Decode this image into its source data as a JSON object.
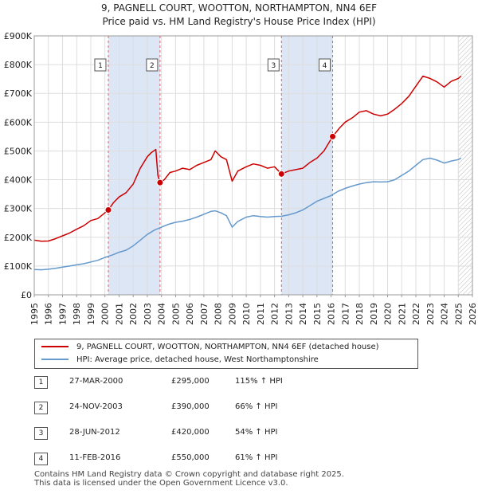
{
  "title": {
    "line1": "9, PAGNELL COURT, WOOTTON, NORTHAMPTON, NN4 6EF",
    "line2": "Price paid vs. HM Land Registry's House Price Index (HPI)"
  },
  "colors": {
    "price_line": "#cc0000",
    "hpi_line": "#6699cc",
    "shade": "#dde6f5",
    "grid": "#dddddd",
    "marker_vline": "#e06060"
  },
  "legend": {
    "items": [
      {
        "label": "9, PAGNELL COURT, WOOTTON, NORTHAMPTON, NN4 6EF (detached house)",
        "color": "#cc0000"
      },
      {
        "label": "HPI: Average price, detached house, West Northamptonshire",
        "color": "#6699cc"
      }
    ]
  },
  "sales": [
    {
      "num": "1",
      "date": "27-MAR-2000",
      "price": "£295,000",
      "pct": "115% ↑ HPI"
    },
    {
      "num": "2",
      "date": "24-NOV-2003",
      "price": "£390,000",
      "pct": "66% ↑ HPI"
    },
    {
      "num": "3",
      "date": "28-JUN-2012",
      "price": "£420,000",
      "pct": "54% ↑ HPI"
    },
    {
      "num": "4",
      "date": "11-FEB-2016",
      "price": "£550,000",
      "pct": "61% ↑ HPI"
    }
  ],
  "footer": {
    "line1": "Contains HM Land Registry data © Crown copyright and database right 2025.",
    "line2": "This data is licensed under the Open Government Licence v3.0."
  },
  "chart_data": {
    "type": "line",
    "xlim": [
      1995,
      2026
    ],
    "ylim": [
      0,
      900000
    ],
    "x_ticks": [
      "1995",
      "1996",
      "1997",
      "1998",
      "1999",
      "2000",
      "2001",
      "2002",
      "2003",
      "2004",
      "2005",
      "2006",
      "2007",
      "2008",
      "2009",
      "2010",
      "2011",
      "2012",
      "2013",
      "2014",
      "2015",
      "2016",
      "2017",
      "2018",
      "2019",
      "2020",
      "2021",
      "2022",
      "2023",
      "2024",
      "2025",
      "2026"
    ],
    "y_ticks": [
      {
        "value": 0,
        "label": "£0"
      },
      {
        "value": 100000,
        "label": "£100K"
      },
      {
        "value": 200000,
        "label": "£200K"
      },
      {
        "value": 300000,
        "label": "£300K"
      },
      {
        "value": 400000,
        "label": "£400K"
      },
      {
        "value": 500000,
        "label": "£500K"
      },
      {
        "value": 600000,
        "label": "£600K"
      },
      {
        "value": 700000,
        "label": "£700K"
      },
      {
        "value": 800000,
        "label": "£800K"
      },
      {
        "value": 900000,
        "label": "£900K"
      }
    ],
    "grid": true,
    "shaded_ranges": [
      [
        2000.24,
        2003.9
      ],
      [
        2012.49,
        2016.11
      ]
    ],
    "hatched_from": 2025.0,
    "markers": [
      {
        "label": "1",
        "x": 2000.24,
        "y": 295000
      },
      {
        "label": "2",
        "x": 2003.9,
        "y": 390000
      },
      {
        "label": "3",
        "x": 2012.49,
        "y": 420000
      },
      {
        "label": "4",
        "x": 2016.11,
        "y": 550000
      }
    ],
    "series": [
      {
        "name": "9, PAGNELL COURT, WOOTTON, NORTHAMPTON, NN4 6EF (detached house)",
        "color": "#cc0000",
        "points": [
          [
            1995.0,
            190000
          ],
          [
            1995.5,
            186000
          ],
          [
            1996.0,
            187000
          ],
          [
            1996.5,
            195000
          ],
          [
            1997.0,
            205000
          ],
          [
            1997.5,
            215000
          ],
          [
            1998.0,
            228000
          ],
          [
            1998.5,
            240000
          ],
          [
            1999.0,
            258000
          ],
          [
            1999.5,
            265000
          ],
          [
            2000.0,
            285000
          ],
          [
            2000.24,
            295000
          ],
          [
            2000.6,
            320000
          ],
          [
            2001.0,
            340000
          ],
          [
            2001.5,
            355000
          ],
          [
            2002.0,
            385000
          ],
          [
            2002.5,
            440000
          ],
          [
            2003.0,
            480000
          ],
          [
            2003.3,
            495000
          ],
          [
            2003.6,
            505000
          ],
          [
            2003.75,
            415000
          ],
          [
            2003.9,
            390000
          ],
          [
            2004.2,
            400000
          ],
          [
            2004.6,
            425000
          ],
          [
            2005.0,
            430000
          ],
          [
            2005.5,
            440000
          ],
          [
            2006.0,
            435000
          ],
          [
            2006.5,
            450000
          ],
          [
            2007.0,
            460000
          ],
          [
            2007.5,
            470000
          ],
          [
            2007.8,
            500000
          ],
          [
            2008.2,
            480000
          ],
          [
            2008.6,
            470000
          ],
          [
            2009.0,
            395000
          ],
          [
            2009.4,
            430000
          ],
          [
            2010.0,
            445000
          ],
          [
            2010.5,
            455000
          ],
          [
            2011.0,
            450000
          ],
          [
            2011.5,
            440000
          ],
          [
            2012.0,
            445000
          ],
          [
            2012.49,
            420000
          ],
          [
            2013.0,
            430000
          ],
          [
            2013.5,
            435000
          ],
          [
            2014.0,
            440000
          ],
          [
            2014.5,
            460000
          ],
          [
            2015.0,
            475000
          ],
          [
            2015.5,
            500000
          ],
          [
            2016.11,
            550000
          ],
          [
            2016.6,
            580000
          ],
          [
            2017.0,
            600000
          ],
          [
            2017.5,
            615000
          ],
          [
            2018.0,
            635000
          ],
          [
            2018.5,
            640000
          ],
          [
            2019.0,
            628000
          ],
          [
            2019.5,
            622000
          ],
          [
            2020.0,
            628000
          ],
          [
            2020.5,
            645000
          ],
          [
            2021.0,
            665000
          ],
          [
            2021.5,
            690000
          ],
          [
            2022.0,
            725000
          ],
          [
            2022.5,
            760000
          ],
          [
            2023.0,
            752000
          ],
          [
            2023.5,
            740000
          ],
          [
            2024.0,
            722000
          ],
          [
            2024.5,
            742000
          ],
          [
            2025.0,
            752000
          ],
          [
            2025.2,
            760000
          ]
        ]
      },
      {
        "name": "HPI: Average price, detached house, West Northamptonshire",
        "color": "#6699cc",
        "points": [
          [
            1995.0,
            88000
          ],
          [
            1995.5,
            87000
          ],
          [
            1996.0,
            89000
          ],
          [
            1996.5,
            92000
          ],
          [
            1997.0,
            96000
          ],
          [
            1997.5,
            100000
          ],
          [
            1998.0,
            104000
          ],
          [
            1998.5,
            108000
          ],
          [
            1999.0,
            114000
          ],
          [
            1999.5,
            120000
          ],
          [
            2000.0,
            130000
          ],
          [
            2000.5,
            138000
          ],
          [
            2001.0,
            148000
          ],
          [
            2001.5,
            155000
          ],
          [
            2002.0,
            170000
          ],
          [
            2002.5,
            190000
          ],
          [
            2003.0,
            210000
          ],
          [
            2003.5,
            225000
          ],
          [
            2004.0,
            235000
          ],
          [
            2004.5,
            245000
          ],
          [
            2005.0,
            252000
          ],
          [
            2005.5,
            256000
          ],
          [
            2006.0,
            262000
          ],
          [
            2006.5,
            270000
          ],
          [
            2007.0,
            280000
          ],
          [
            2007.5,
            290000
          ],
          [
            2007.8,
            292000
          ],
          [
            2008.2,
            285000
          ],
          [
            2008.6,
            275000
          ],
          [
            2009.0,
            235000
          ],
          [
            2009.4,
            255000
          ],
          [
            2010.0,
            270000
          ],
          [
            2010.5,
            275000
          ],
          [
            2011.0,
            272000
          ],
          [
            2011.5,
            270000
          ],
          [
            2012.0,
            272000
          ],
          [
            2012.5,
            273000
          ],
          [
            2013.0,
            278000
          ],
          [
            2013.5,
            285000
          ],
          [
            2014.0,
            295000
          ],
          [
            2014.5,
            310000
          ],
          [
            2015.0,
            325000
          ],
          [
            2015.5,
            335000
          ],
          [
            2016.0,
            345000
          ],
          [
            2016.5,
            360000
          ],
          [
            2017.0,
            370000
          ],
          [
            2017.5,
            378000
          ],
          [
            2018.0,
            385000
          ],
          [
            2018.5,
            390000
          ],
          [
            2019.0,
            393000
          ],
          [
            2019.5,
            392000
          ],
          [
            2020.0,
            393000
          ],
          [
            2020.5,
            400000
          ],
          [
            2021.0,
            415000
          ],
          [
            2021.5,
            430000
          ],
          [
            2022.0,
            450000
          ],
          [
            2022.5,
            470000
          ],
          [
            2023.0,
            475000
          ],
          [
            2023.5,
            468000
          ],
          [
            2024.0,
            458000
          ],
          [
            2024.5,
            465000
          ],
          [
            2025.0,
            470000
          ],
          [
            2025.2,
            475000
          ]
        ]
      }
    ]
  }
}
